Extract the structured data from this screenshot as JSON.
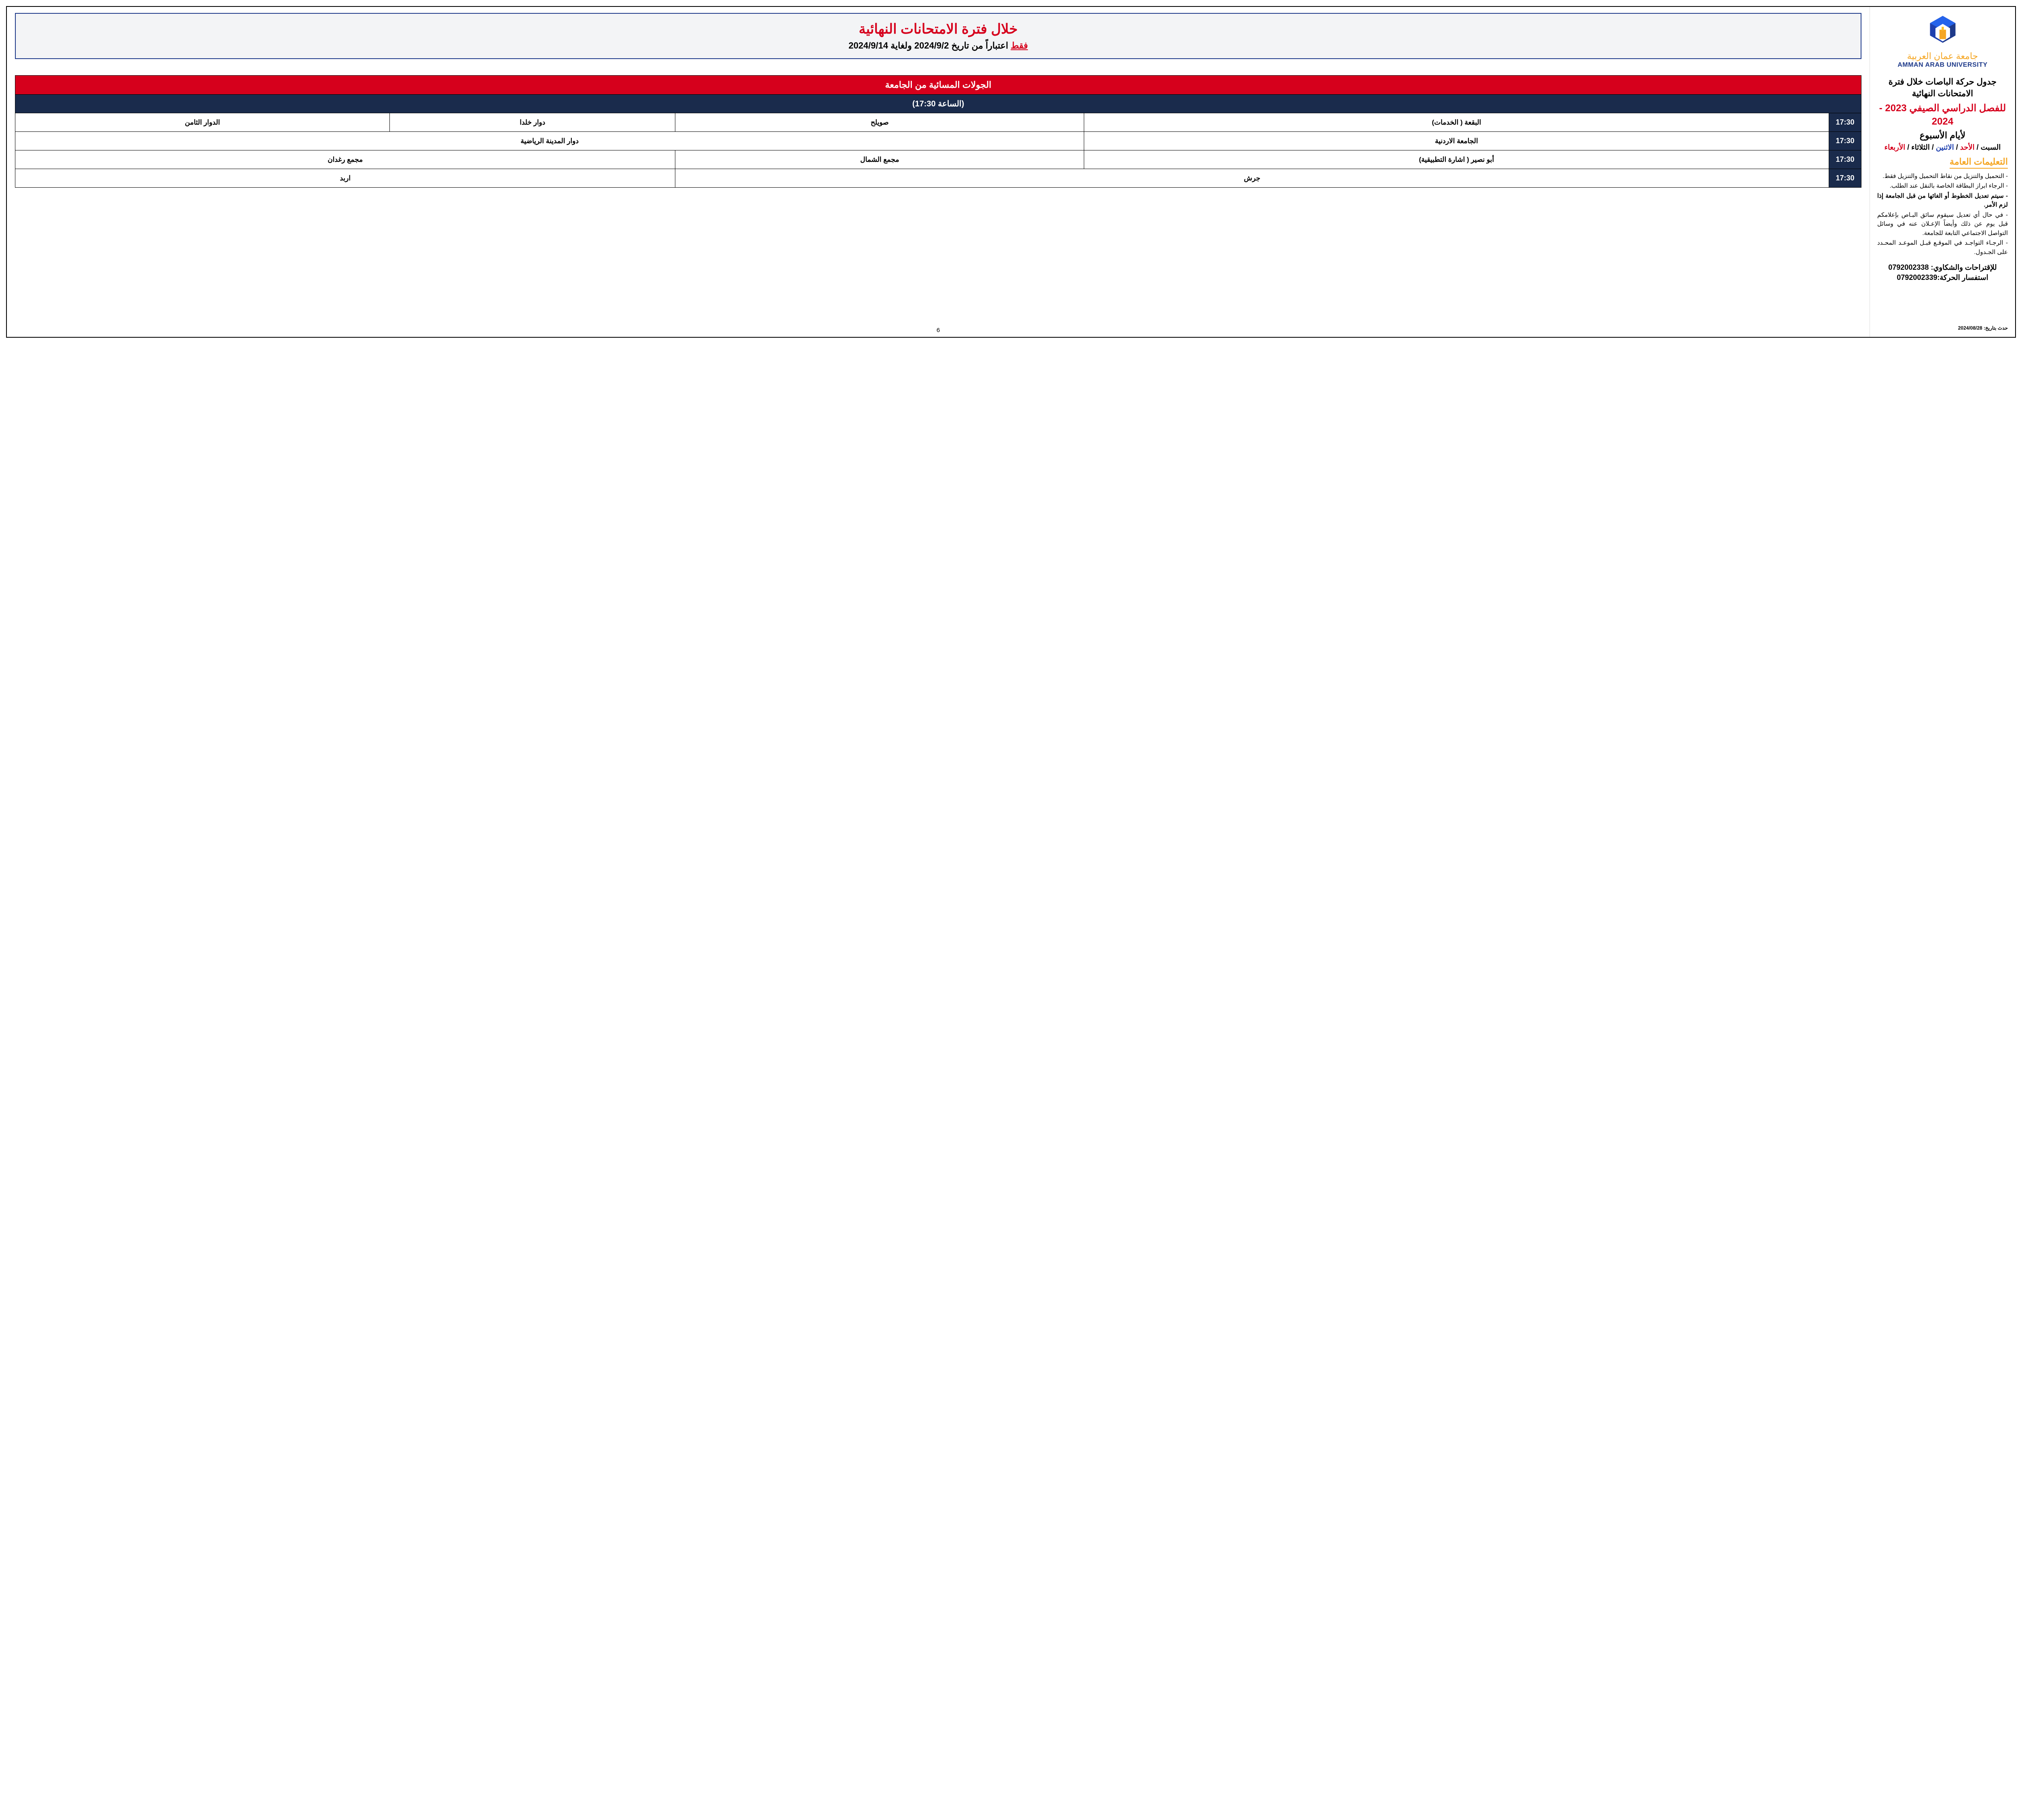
{
  "university": {
    "name_ar": "جامعة عمان العربية",
    "name_en": "AMMAN ARAB UNIVERSITY",
    "logo_colors": {
      "navy": "#1e3a8a",
      "orange": "#f5a623",
      "yellow": "#fbbf24"
    }
  },
  "sidebar": {
    "title": "جدول حركة الباصات خلال فترة الامتحانات النهائية",
    "semester": "للفصل الدراسي الصيفي 2023 - 2024",
    "days_label": "لأيام الأسبوع",
    "days": [
      {
        "text": "السبت",
        "color": "black"
      },
      {
        "text": "الأحد",
        "color": "red"
      },
      {
        "text": "الاثنين",
        "color": "blue"
      },
      {
        "text": "الثلاثاء",
        "color": "black"
      },
      {
        "text": "الأربعاء",
        "color": "red"
      }
    ],
    "instructions_title": "التعليمات العامة",
    "instructions": [
      {
        "text": "- التحميل والتنزيل من نقاط التحميل والتنزيل فقط.",
        "bold": false
      },
      {
        "text": "- الرجاء ابراز البطاقة الخاصة بالنقل عند الطلب.",
        "bold": false
      },
      {
        "text": "- سيتم تعديل الخطوط أو الغائها من قبل الجامعة إذا لزم الأمر.",
        "bold": true
      },
      {
        "text": "- في حال أي تعديل سيقوم سائق البـاص بإعلامكم قبل يوم عن ذلك وأيضاً الإعـلان عنه في وسائل التواصل الاجتماعي التابعة للجامعة.",
        "bold": false
      },
      {
        "text": "- الرجـاء التواجـد في الموقـع قبـل الموعـد المحـدد على الجـدول.",
        "bold": false
      }
    ],
    "contact_suggestions_label": "للإقتراحات والشكاوي:",
    "contact_suggestions_phone": "0792002338",
    "contact_inquiry_label": "استفسار الحركة:",
    "contact_inquiry_phone": "0792002339",
    "updated_label": "حدث بتاريخ:",
    "updated_date": "2024/08/28"
  },
  "banner": {
    "title": "خلال فترة الامتحانات النهائية",
    "only": "فقط",
    "sub": "اعتباراً من تاريخ 2024/9/2 ولغاية 2024/9/14"
  },
  "table": {
    "header_main": "الجولات المسائية من الجامعة",
    "header_time": "(الساعة 17:30)",
    "rows": [
      {
        "time": "17:30",
        "cells": [
          {
            "text": "البقعة ( الخدمات)",
            "span": 1
          },
          {
            "text": "صويلح",
            "span": 1
          },
          {
            "text": "دوار خلدا",
            "span": 1
          },
          {
            "text": "الدوار الثامن",
            "span": 1
          }
        ]
      },
      {
        "time": "17:30",
        "cells": [
          {
            "text": "الجامعة الاردنية",
            "span": 1
          },
          {
            "text": "دوار المدينة الرياضية",
            "span": 3
          }
        ]
      },
      {
        "time": "17:30",
        "cells": [
          {
            "text": "أبو نصير ( اشارة التطبيقية)",
            "span": 1
          },
          {
            "text": "مجمع الشمال",
            "span": 1
          },
          {
            "text": "مجمع رغدان",
            "span": 2
          }
        ]
      },
      {
        "time": "17:30",
        "cells": [
          {
            "text": "جرش",
            "span": 2
          },
          {
            "text": "اربد",
            "span": 2
          }
        ]
      }
    ]
  },
  "page_number": "6",
  "colors": {
    "red": "#d6001c",
    "navy": "#1a2b4c",
    "orange": "#f5a623",
    "blue": "#1e40af",
    "border": "#000000",
    "bg_gray": "#f3f4f6"
  }
}
